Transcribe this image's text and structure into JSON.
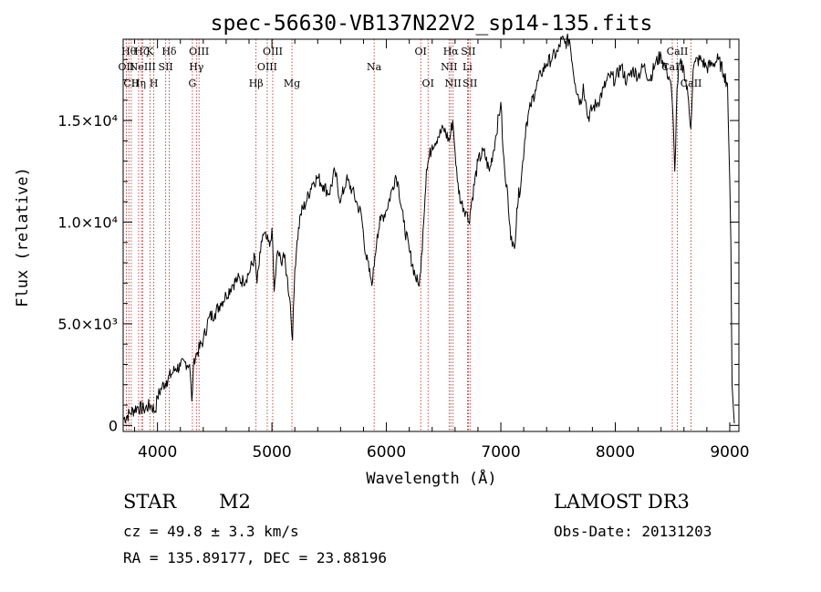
{
  "chart_data": {
    "type": "line",
    "title": "spec-56630-VB137N22V2_sp14-135.fits",
    "xlabel": "Wavelength (Å)",
    "ylabel": "Flux (relative)",
    "xlim": [
      3700,
      9080
    ],
    "ylim": [
      -300,
      19000
    ],
    "x_ticks": [
      {
        "value": 4000,
        "label": "4000"
      },
      {
        "value": 5000,
        "label": "5000"
      },
      {
        "value": 6000,
        "label": "6000"
      },
      {
        "value": 7000,
        "label": "7000"
      },
      {
        "value": 8000,
        "label": "8000"
      },
      {
        "value": 9000,
        "label": "9000"
      }
    ],
    "y_ticks": [
      {
        "value": 0,
        "label": "0"
      },
      {
        "value": 5000,
        "label": "5.0×10³"
      },
      {
        "value": 10000,
        "label": "1.0×10⁴"
      },
      {
        "value": 15000,
        "label": "1.5×10⁴"
      }
    ],
    "series": [
      {
        "name": "flux",
        "x": [
          3700,
          3760,
          3820,
          3880,
          3940,
          3980,
          4000,
          4040,
          4080,
          4120,
          4160,
          4200,
          4240,
          4280,
          4300,
          4320,
          4350,
          4400,
          4450,
          4500,
          4550,
          4600,
          4650,
          4700,
          4750,
          4800,
          4850,
          4870,
          4900,
          4920,
          4950,
          4980,
          5000,
          5020,
          5050,
          5080,
          5100,
          5130,
          5160,
          5180,
          5200,
          5220,
          5250,
          5300,
          5350,
          5400,
          5450,
          5500,
          5550,
          5600,
          5650,
          5700,
          5750,
          5780,
          5820,
          5860,
          5880,
          5900,
          5920,
          5950,
          6000,
          6050,
          6080,
          6100,
          6150,
          6200,
          6250,
          6280,
          6300,
          6320,
          6350,
          6400,
          6450,
          6500,
          6550,
          6580,
          6600,
          6620,
          6650,
          6700,
          6720,
          6750,
          6800,
          6850,
          6900,
          6950,
          7000,
          7020,
          7040,
          7060,
          7080,
          7100,
          7120,
          7140,
          7180,
          7220,
          7260,
          7300,
          7350,
          7400,
          7450,
          7500,
          7530,
          7560,
          7600,
          7650,
          7700,
          7720,
          7740,
          7760,
          7800,
          7850,
          7900,
          7950,
          8000,
          8050,
          8100,
          8150,
          8200,
          8250,
          8300,
          8350,
          8400,
          8450,
          8480,
          8500,
          8520,
          8540,
          8560,
          8600,
          8640,
          8660,
          8680,
          8700,
          8750,
          8800,
          8850,
          8900,
          8950,
          8980,
          9000,
          9010,
          9020,
          9040
        ],
        "y": [
          300,
          600,
          900,
          800,
          1000,
          700,
          1400,
          1900,
          2200,
          2500,
          2800,
          2900,
          3100,
          3000,
          1200,
          3300,
          3600,
          4200,
          5300,
          5500,
          6000,
          6400,
          6900,
          7200,
          7100,
          7500,
          8300,
          7000,
          8500,
          9400,
          9200,
          8800,
          9700,
          6600,
          8600,
          8000,
          8500,
          7400,
          6000,
          4200,
          7700,
          9100,
          10400,
          11000,
          11900,
          12200,
          11800,
          11400,
          12500,
          11000,
          12100,
          11600,
          10800,
          10400,
          8400,
          7300,
          7100,
          8300,
          9400,
          10100,
          10600,
          11600,
          12300,
          12000,
          10000,
          8600,
          7400,
          6900,
          7500,
          9600,
          12600,
          13800,
          14200,
          14600,
          14000,
          15000,
          13500,
          12000,
          11000,
          10500,
          10000,
          11200,
          13000,
          13500,
          12500,
          14000,
          15900,
          13500,
          12000,
          11400,
          9800,
          8800,
          8700,
          10700,
          12200,
          14800,
          15700,
          16500,
          17300,
          17800,
          18100,
          18400,
          19000,
          18800,
          19000,
          16800,
          15800,
          16800,
          16000,
          15100,
          15600,
          15900,
          16600,
          17200,
          17000,
          17700,
          16900,
          17500,
          17200,
          17700,
          17000,
          17800,
          18200,
          17400,
          17000,
          15700,
          12500,
          16600,
          17800,
          17500,
          16000,
          14600,
          17500,
          17900,
          18000,
          17600,
          17800,
          18000,
          17300,
          16800,
          12000,
          9000,
          2000,
          100
        ]
      }
    ],
    "line_markers": [
      {
        "x": 3727,
        "label": "OII",
        "row": 1
      },
      {
        "x": 3750,
        "label": "Hθ",
        "row": 0
      },
      {
        "x": 3771,
        "label": "CII",
        "row": 2
      },
      {
        "x": 3835,
        "label": "Hη",
        "row": 2
      },
      {
        "x": 3860,
        "label": "Hζ",
        "row": 0
      },
      {
        "x": 3870,
        "label": "NeIII",
        "row": 1
      },
      {
        "x": 3934,
        "label": "K",
        "row": 0
      },
      {
        "x": 3968,
        "label": "H",
        "row": 2
      },
      {
        "x": 4072,
        "label": "SII",
        "row": 1
      },
      {
        "x": 4102,
        "label": "Hδ",
        "row": 0
      },
      {
        "x": 4305,
        "label": "G",
        "row": 2
      },
      {
        "x": 4340,
        "label": "Hγ",
        "row": 1
      },
      {
        "x": 4363,
        "label": "OIII",
        "row": 0
      },
      {
        "x": 4861,
        "label": "Hβ",
        "row": 2
      },
      {
        "x": 4959,
        "label": "OIII",
        "row": 1
      },
      {
        "x": 5007,
        "label": "OIII",
        "row": 0
      },
      {
        "x": 5175,
        "label": "Mg",
        "row": 2
      },
      {
        "x": 5893,
        "label": "Na",
        "row": 1
      },
      {
        "x": 6300,
        "label": "OI",
        "row": 0
      },
      {
        "x": 6364,
        "label": "OI",
        "row": 2
      },
      {
        "x": 6548,
        "label": "NII",
        "row": 1
      },
      {
        "x": 6563,
        "label": "Hα",
        "row": 0
      },
      {
        "x": 6583,
        "label": "NII",
        "row": 2
      },
      {
        "x": 6708,
        "label": "Li",
        "row": 1
      },
      {
        "x": 6716,
        "label": "SII",
        "row": 0
      },
      {
        "x": 6731,
        "label": "SII",
        "row": 2
      },
      {
        "x": 8498,
        "label": "CaII",
        "row": 1
      },
      {
        "x": 8542,
        "label": "CaII",
        "row": 0
      },
      {
        "x": 8662,
        "label": "CaII",
        "row": 2
      }
    ],
    "grid": false,
    "legend": "none"
  },
  "info": {
    "object_class": "STAR",
    "subclass": "M2",
    "survey": "LAMOST DR3",
    "redshift_line": "cz = 49.8 ± 3.3 km/s",
    "obs_date_line": "Obs-Date: 20131203",
    "coords_line": "RA = 135.89177, DEC =  23.88196"
  },
  "colors": {
    "axis": "#000000",
    "spectrum": "#000000",
    "marker_line": "#b22222"
  }
}
